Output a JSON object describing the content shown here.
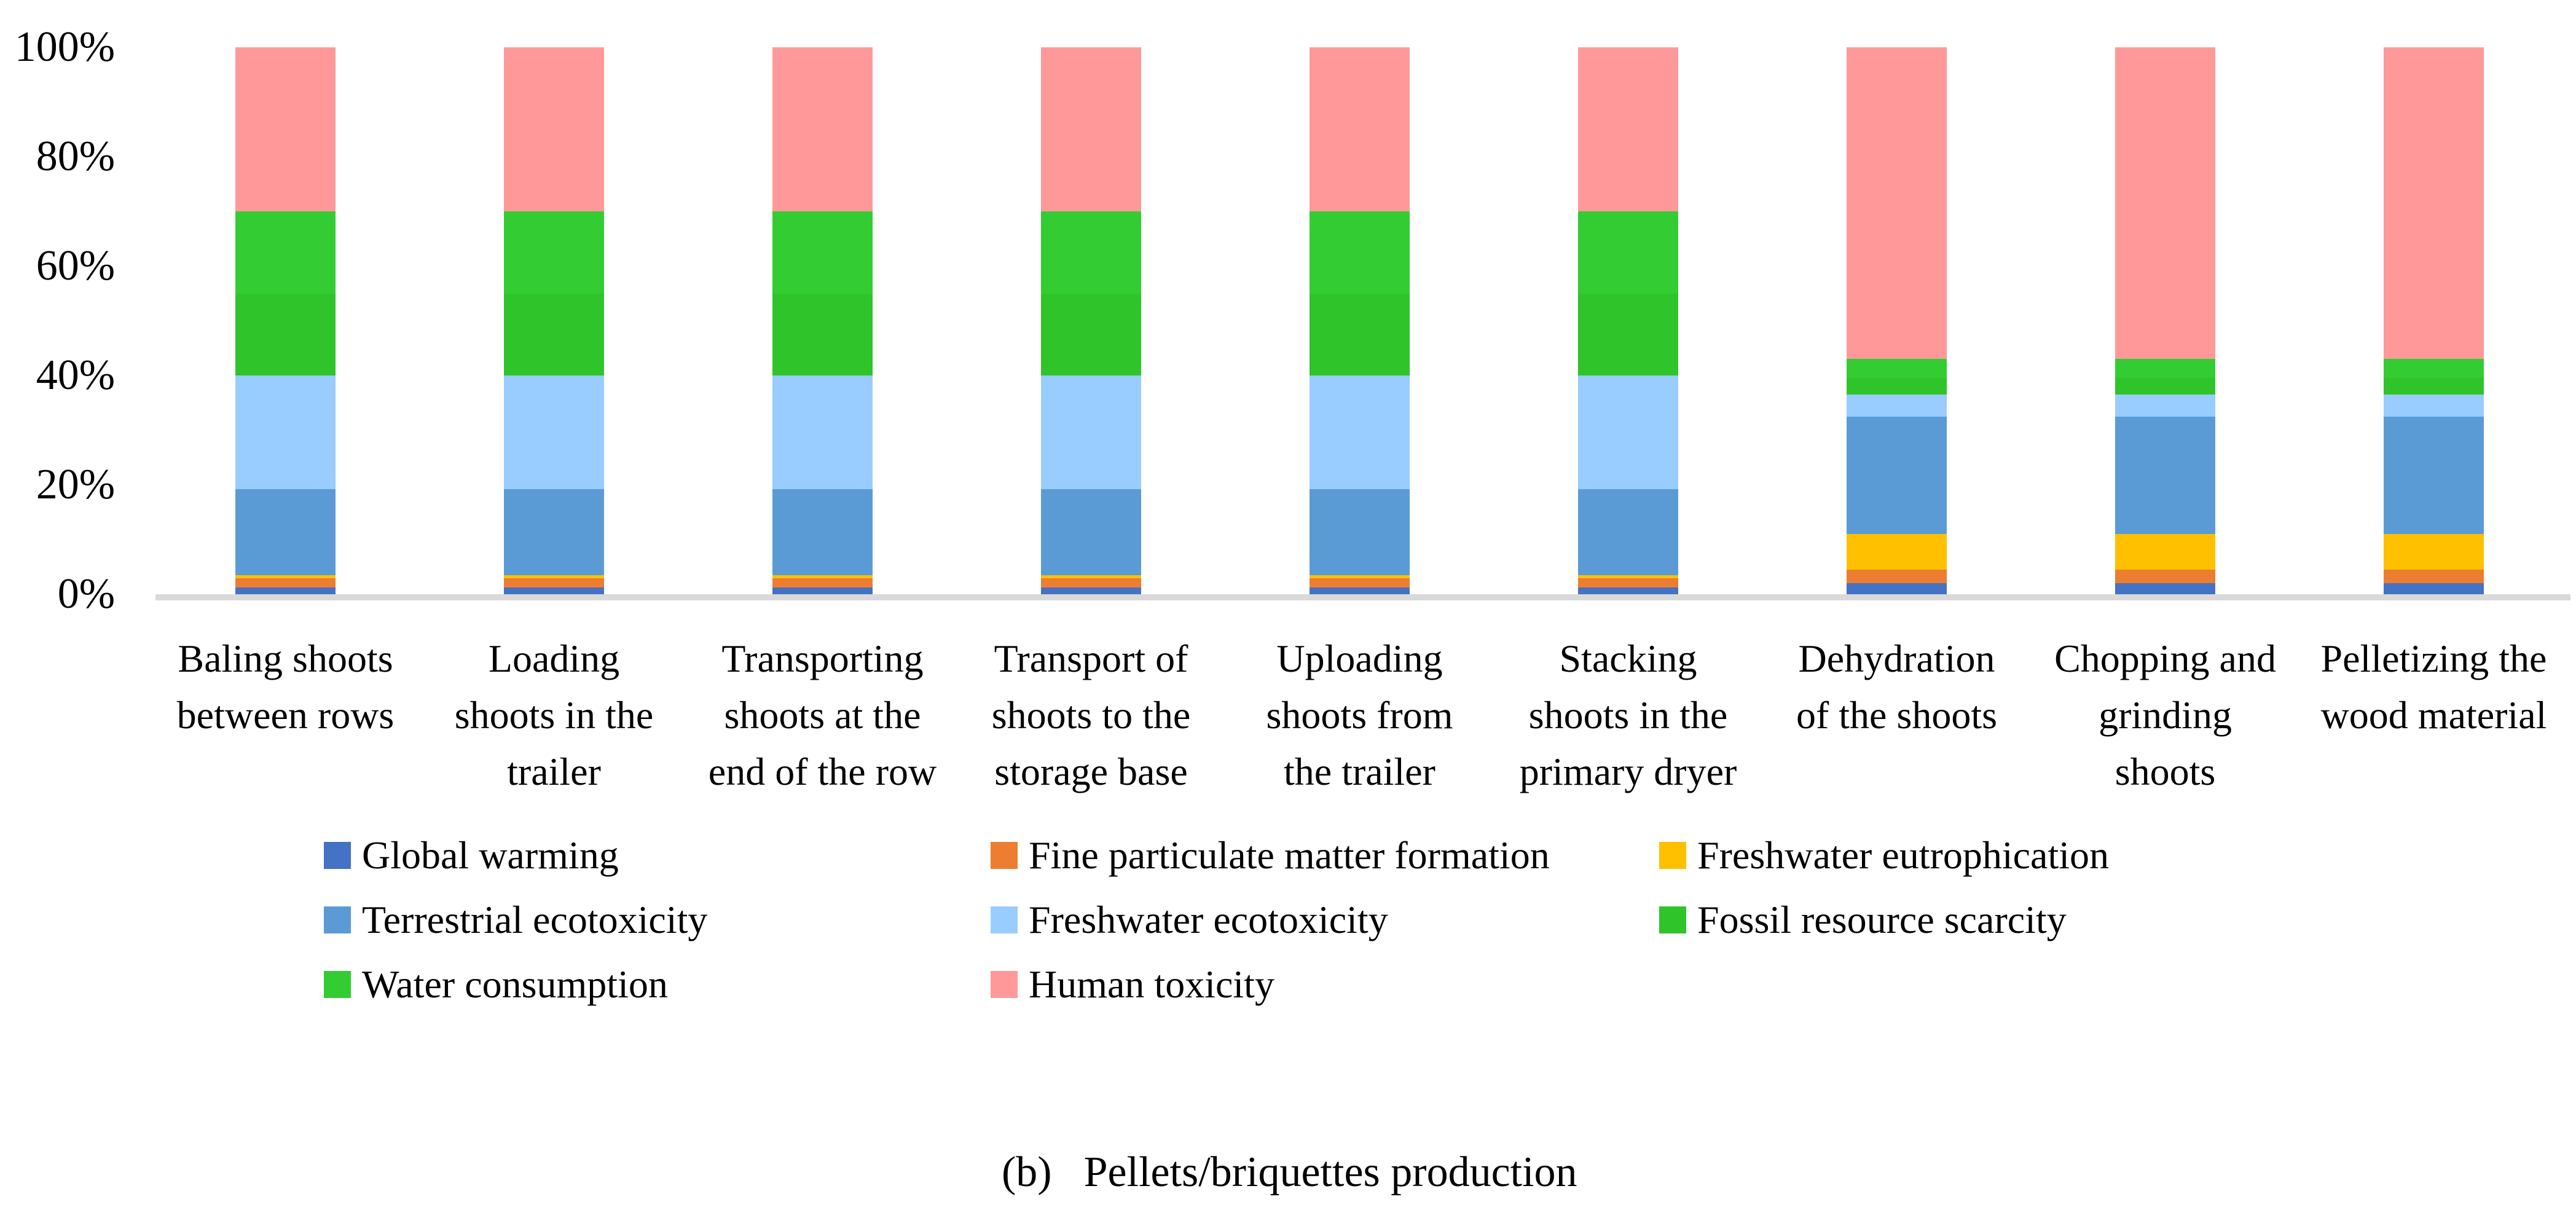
{
  "figure": {
    "caption": {
      "marker": "(b)",
      "text": "Pellets/briquettes production"
    }
  },
  "chart_data": {
    "type": "bar",
    "variant": "stacked-100-percent",
    "title": "",
    "xlabel": "",
    "ylabel": "",
    "ylim": [
      0,
      100
    ],
    "y_tick_labels": [
      "0%",
      "20%",
      "40%",
      "60%",
      "80%",
      "100%"
    ],
    "grid": false,
    "axis_line_color": "#D9D9D9",
    "legend_position": "bottom",
    "legend_columns": 3,
    "categories": [
      {
        "label": "Baling shoots between rows",
        "lines": [
          "Baling shoots",
          "between rows"
        ]
      },
      {
        "label": "Loading shoots in the trailer",
        "lines": [
          "Loading",
          "shoots in the",
          "trailer"
        ]
      },
      {
        "label": "Transporting shoots at the end of the row",
        "lines": [
          "Transporting",
          "shoots at the",
          "end of the row"
        ]
      },
      {
        "label": "Transport of shoots to the storage base",
        "lines": [
          "Transport of",
          "shoots to the",
          "storage base"
        ]
      },
      {
        "label": "Uploading shoots from the trailer",
        "lines": [
          "Uploading",
          "shoots from",
          "the trailer"
        ]
      },
      {
        "label": "Stacking shoots in the primary dryer",
        "lines": [
          "Stacking",
          "shoots in the",
          "primary dryer"
        ]
      },
      {
        "label": "Dehydration of the shoots",
        "lines": [
          "Dehydration",
          "of the shoots"
        ]
      },
      {
        "label": "Chopping and grinding shoots",
        "lines": [
          "Chopping and",
          "grinding",
          "shoots"
        ]
      },
      {
        "label": "Pelletizing the wood material",
        "lines": [
          "Pelletizing the",
          "wood material"
        ]
      }
    ],
    "series": [
      {
        "name": "Global warming",
        "color": "#4472C4",
        "values": [
          1.2,
          1.2,
          1.2,
          1.2,
          1.2,
          1.2,
          2,
          2,
          2
        ]
      },
      {
        "name": "Fine particulate matter formation",
        "color": "#ED7D31",
        "values": [
          1.7,
          1.7,
          1.7,
          1.7,
          1.7,
          1.7,
          2.5,
          2.5,
          2.5
        ]
      },
      {
        "name": "Freshwater eutrophication",
        "color": "#FFC000",
        "values": [
          0.6,
          0.6,
          0.6,
          0.6,
          0.6,
          0.6,
          6.5,
          6.5,
          6.5
        ]
      },
      {
        "name": "Terrestrial ecotoxicity",
        "color": "#5B9BD5",
        "values": [
          15.7,
          15.7,
          15.7,
          15.7,
          15.7,
          15.7,
          21.5,
          21.5,
          21.5
        ]
      },
      {
        "name": "Freshwater ecotoxicity",
        "color": "#99CCFF",
        "values": [
          20.8,
          20.8,
          20.8,
          20.8,
          20.8,
          20.8,
          4,
          4,
          4
        ]
      },
      {
        "name": "Fossil resource scarcity",
        "color": "#2FC42A",
        "values": [
          15,
          15,
          15,
          15,
          15,
          15,
          3,
          3,
          3
        ]
      },
      {
        "name": "Water consumption",
        "color": "#33CC33",
        "values": [
          15,
          15,
          15,
          15,
          15,
          15,
          3.5,
          3.5,
          3.5
        ]
      },
      {
        "name": "Human toxicity",
        "color": "#FF9999",
        "values": [
          30,
          30,
          30,
          30,
          30,
          30,
          57,
          57,
          57
        ]
      }
    ]
  }
}
